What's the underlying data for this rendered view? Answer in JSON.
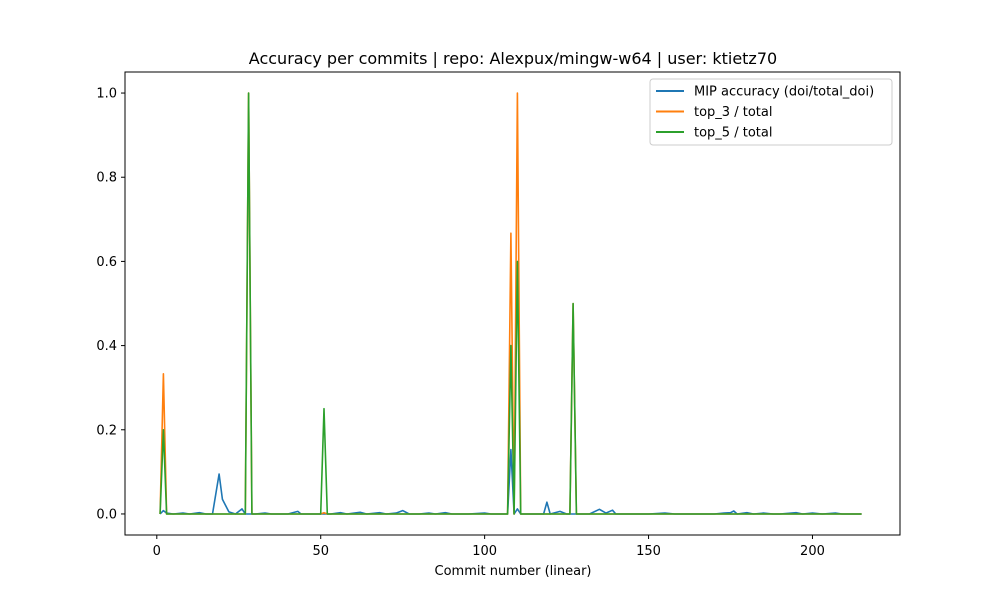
{
  "chart_data": {
    "type": "line",
    "title": "Accuracy per commits | repo: Alexpux/mingw-w64 | user: ktietz70",
    "xlabel": "Commit number (linear)",
    "ylabel": "",
    "xlim": [
      -9.7,
      226.7
    ],
    "ylim": [
      -0.05,
      1.05
    ],
    "xticks": [
      0,
      50,
      100,
      150,
      200
    ],
    "yticks": [
      0.0,
      0.2,
      0.4,
      0.6,
      0.8,
      1.0
    ],
    "xtick_labels": [
      "0",
      "50",
      "100",
      "150",
      "200"
    ],
    "ytick_labels": [
      "0.0",
      "0.2",
      "0.4",
      "0.6",
      "0.8",
      "1.0"
    ],
    "legend_position": "top-right",
    "series": [
      {
        "name": "MIP accuracy (doi/total_doi)",
        "color": "#1f77b4",
        "points": [
          [
            1,
            0
          ],
          [
            2,
            0.008
          ],
          [
            3,
            0.002
          ],
          [
            5,
            0
          ],
          [
            8,
            0.002
          ],
          [
            10,
            0
          ],
          [
            13,
            0.003
          ],
          [
            15,
            0
          ],
          [
            17,
            0
          ],
          [
            19,
            0.095
          ],
          [
            20,
            0.035
          ],
          [
            22,
            0.005
          ],
          [
            24,
            0
          ],
          [
            26,
            0.012
          ],
          [
            27,
            0
          ],
          [
            30,
            0
          ],
          [
            33,
            0.002
          ],
          [
            35,
            0
          ],
          [
            40,
            0
          ],
          [
            43,
            0.006
          ],
          [
            44,
            0
          ],
          [
            48,
            0
          ],
          [
            51,
            0
          ],
          [
            53,
            0
          ],
          [
            56,
            0.003
          ],
          [
            58,
            0
          ],
          [
            62,
            0.004
          ],
          [
            64,
            0
          ],
          [
            68,
            0.003
          ],
          [
            70,
            0
          ],
          [
            73,
            0.002
          ],
          [
            75,
            0.008
          ],
          [
            77,
            0
          ],
          [
            80,
            0
          ],
          [
            83,
            0.002
          ],
          [
            85,
            0
          ],
          [
            88,
            0.003
          ],
          [
            90,
            0
          ],
          [
            95,
            0
          ],
          [
            100,
            0.002
          ],
          [
            102,
            0
          ],
          [
            107,
            0
          ],
          [
            108,
            0.153
          ],
          [
            109,
            0
          ],
          [
            110,
            0.012
          ],
          [
            111,
            0
          ],
          [
            115,
            0
          ],
          [
            118,
            0
          ],
          [
            119,
            0.028
          ],
          [
            120,
            0
          ],
          [
            123,
            0.006
          ],
          [
            125,
            0
          ],
          [
            128,
            0
          ],
          [
            132,
            0
          ],
          [
            135,
            0.011
          ],
          [
            137,
            0.002
          ],
          [
            139,
            0.009
          ],
          [
            140,
            0
          ],
          [
            145,
            0
          ],
          [
            150,
            0
          ],
          [
            155,
            0.002
          ],
          [
            158,
            0
          ],
          [
            162,
            0
          ],
          [
            165,
            0
          ],
          [
            170,
            0
          ],
          [
            173,
            0.002
          ],
          [
            175,
            0.003
          ],
          [
            176,
            0.007
          ],
          [
            177,
            0
          ],
          [
            180,
            0.003
          ],
          [
            182,
            0
          ],
          [
            185,
            0.002
          ],
          [
            188,
            0
          ],
          [
            190,
            0
          ],
          [
            195,
            0.003
          ],
          [
            197,
            0
          ],
          [
            200,
            0.002
          ],
          [
            203,
            0
          ],
          [
            207,
            0.002
          ],
          [
            209,
            0
          ],
          [
            215,
            0
          ]
        ]
      },
      {
        "name": "top_3 / total",
        "color": "#ff7f0e",
        "points": [
          [
            1,
            0
          ],
          [
            2,
            0.333
          ],
          [
            3,
            0
          ],
          [
            27,
            0
          ],
          [
            28,
            1.0
          ],
          [
            29,
            0
          ],
          [
            50,
            0
          ],
          [
            51,
            0.003
          ],
          [
            52,
            0
          ],
          [
            107,
            0
          ],
          [
            108,
            0.667
          ],
          [
            109,
            0
          ],
          [
            110,
            1.0
          ],
          [
            111,
            0
          ],
          [
            126,
            0
          ],
          [
            127,
            0.5
          ],
          [
            128,
            0
          ],
          [
            215,
            0
          ]
        ]
      },
      {
        "name": "top_5 / total",
        "color": "#2ca02c",
        "points": [
          [
            1,
            0
          ],
          [
            2,
            0.2
          ],
          [
            3,
            0
          ],
          [
            27,
            0
          ],
          [
            28,
            1.0
          ],
          [
            29,
            0
          ],
          [
            50,
            0
          ],
          [
            51,
            0.25
          ],
          [
            52,
            0
          ],
          [
            107,
            0
          ],
          [
            108,
            0.4
          ],
          [
            109,
            0
          ],
          [
            110,
            0.6
          ],
          [
            111,
            0
          ],
          [
            126,
            0
          ],
          [
            127,
            0.5
          ],
          [
            128,
            0
          ],
          [
            215,
            0
          ]
        ]
      }
    ]
  }
}
